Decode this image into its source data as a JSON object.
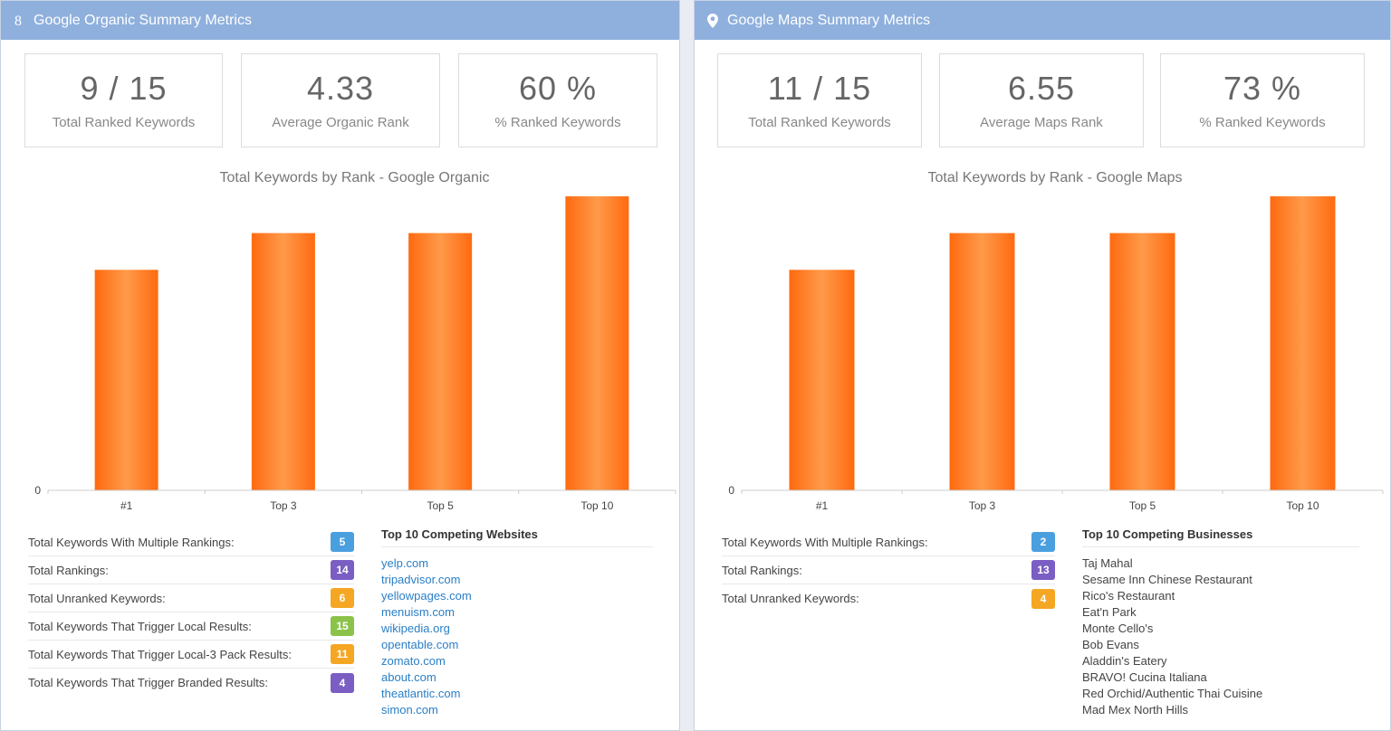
{
  "colors": {
    "header": "#8fb0dd",
    "bar": "#ff7f2a",
    "link": "#2a7ec6"
  },
  "organic": {
    "header_title": "Google Organic Summary Metrics",
    "header_icon": "google-icon",
    "tiles": [
      {
        "value": "9 / 15",
        "label": "Total Ranked Keywords"
      },
      {
        "value": "4.33",
        "label": "Average Organic Rank"
      },
      {
        "value": "60 %",
        "label": "% Ranked Keywords"
      }
    ],
    "stats": [
      {
        "label": "Total Keywords With Multiple Rankings:",
        "value": "5",
        "color": "#4a9fdf"
      },
      {
        "label": "Total Rankings:",
        "value": "14",
        "color": "#7a5ec3"
      },
      {
        "label": "Total Unranked Keywords:",
        "value": "6",
        "color": "#f5a623"
      },
      {
        "label": "Total Keywords That Trigger Local Results:",
        "value": "15",
        "color": "#8bc34a"
      },
      {
        "label": "Total Keywords That Trigger Local-3 Pack Results:",
        "value": "11",
        "color": "#f5a623"
      },
      {
        "label": "Total Keywords That Trigger Branded Results:",
        "value": "4",
        "color": "#7a5ec3"
      }
    ],
    "competitors_title": "Top 10 Competing Websites",
    "competitors": [
      "yelp.com",
      "tripadvisor.com",
      "yellowpages.com",
      "menuism.com",
      "wikipedia.org",
      "opentable.com",
      "zomato.com",
      "about.com",
      "theatlantic.com",
      "simon.com"
    ]
  },
  "maps": {
    "header_title": "Google Maps Summary Metrics",
    "header_icon": "map-pin-icon",
    "tiles": [
      {
        "value": "11 / 15",
        "label": "Total Ranked Keywords"
      },
      {
        "value": "6.55",
        "label": "Average Maps Rank"
      },
      {
        "value": "73 %",
        "label": "% Ranked Keywords"
      }
    ],
    "stats": [
      {
        "label": "Total Keywords With Multiple Rankings:",
        "value": "2",
        "color": "#4a9fdf"
      },
      {
        "label": "Total Rankings:",
        "value": "13",
        "color": "#7a5ec3"
      },
      {
        "label": "Total Unranked Keywords:",
        "value": "4",
        "color": "#f5a623"
      }
    ],
    "competitors_title": "Top 10 Competing Businesses",
    "competitors": [
      "Taj Mahal",
      "Sesame Inn Chinese Restaurant",
      "Rico's Restaurant",
      "Eat'n Park",
      "Monte Cello's",
      "Bob Evans",
      "Aladdin's Eatery",
      "BRAVO! Cucina Italiana",
      "Red Orchid/Authentic Thai Cuisine",
      "Mad Mex North Hills"
    ]
  },
  "chart_data": [
    {
      "type": "bar",
      "title": "Total Keywords by Rank - Google Organic",
      "categories": [
        "#1",
        "Top 3",
        "Top 5",
        "Top 10"
      ],
      "values": [
        6,
        7,
        7,
        8
      ],
      "ylim": [
        0,
        8
      ],
      "y_tick_labels": [
        "0"
      ],
      "xlabel": "",
      "ylabel": ""
    },
    {
      "type": "bar",
      "title": "Total Keywords by Rank - Google Maps",
      "categories": [
        "#1",
        "Top 3",
        "Top 5",
        "Top 10"
      ],
      "values": [
        6,
        7,
        7,
        8
      ],
      "ylim": [
        0,
        8
      ],
      "y_tick_labels": [
        "0"
      ],
      "xlabel": "",
      "ylabel": ""
    }
  ]
}
